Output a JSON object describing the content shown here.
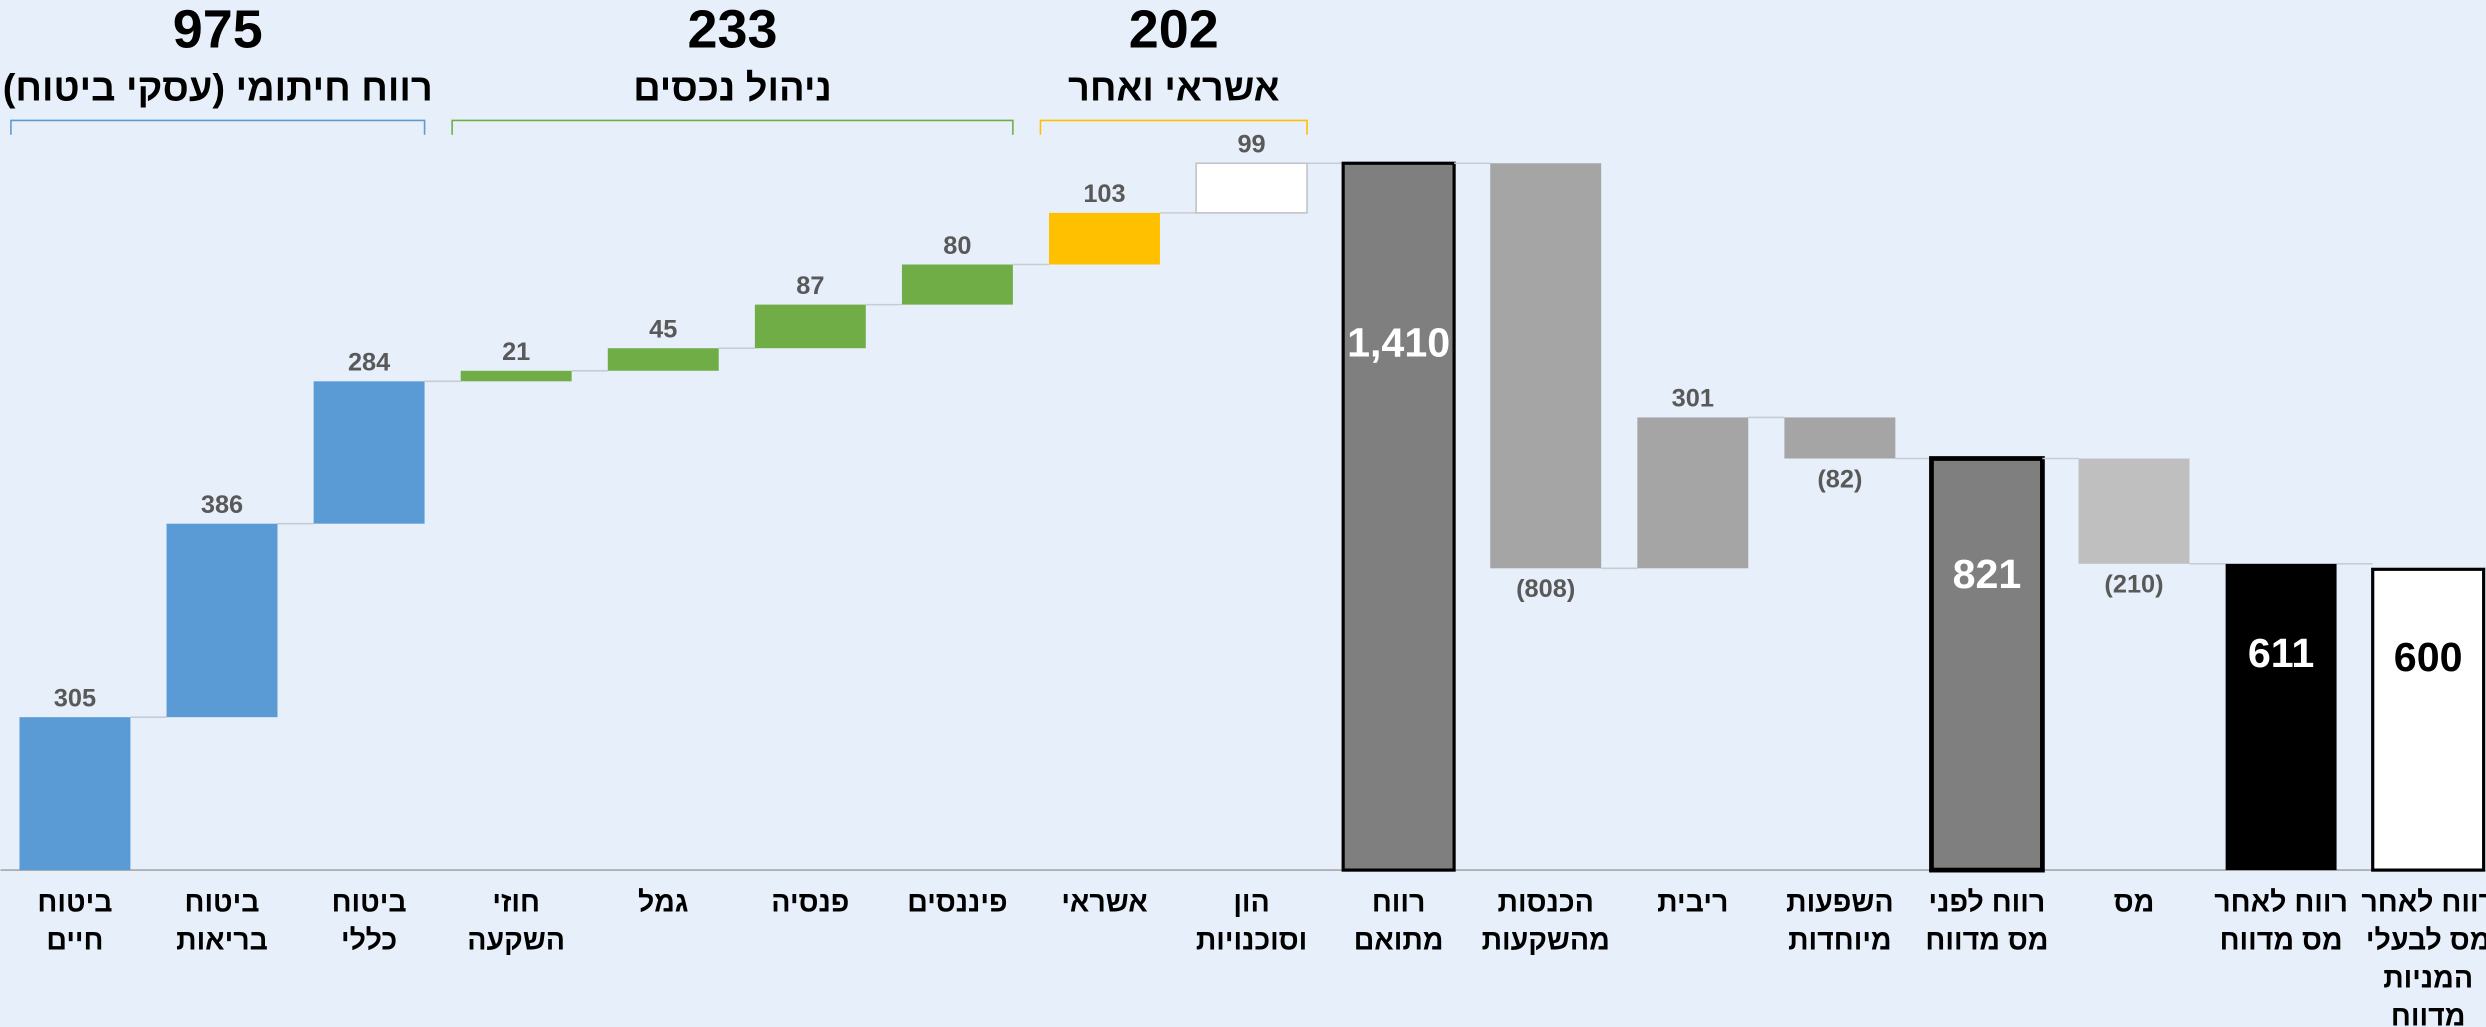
{
  "chart_data": {
    "type": "waterfall",
    "categories": [
      [
        "ביטוח",
        "חיים"
      ],
      [
        "ביטוח",
        "בריאות"
      ],
      [
        "ביטוח",
        "כללי"
      ],
      [
        "חוזי",
        "השקעה"
      ],
      [
        "גמל"
      ],
      [
        "פנסיה"
      ],
      [
        "פיננסים"
      ],
      [
        "אשראי"
      ],
      [
        "הון",
        "וסוכנויות"
      ],
      [
        "רווח",
        "מתואם"
      ],
      [
        "הכנסות",
        "מהשקעות"
      ],
      [
        "ריבית"
      ],
      [
        "השפעות",
        "מיוחדות"
      ],
      [
        "רווח לפני",
        "מס מדווח"
      ],
      [
        "מס"
      ],
      [
        "רווח לאחר",
        "מס מדווח"
      ],
      [
        "רווח לאחר",
        "מס לבעלי",
        "המניות",
        "מדווח"
      ]
    ],
    "values": [
      305,
      386,
      284,
      21,
      45,
      87,
      80,
      103,
      99,
      1410,
      -808,
      301,
      -82,
      821,
      -210,
      611,
      600
    ],
    "value_labels": [
      "305",
      "386",
      "284",
      "21",
      "45",
      "87",
      "80",
      "103",
      "99",
      "1,410",
      "(808)",
      "301",
      "(82)",
      "821",
      "(210)",
      "611",
      "600"
    ],
    "bar_kinds": [
      "delta",
      "delta",
      "delta",
      "delta",
      "delta",
      "delta",
      "delta",
      "delta",
      "delta",
      "total",
      "delta",
      "delta",
      "delta",
      "total",
      "delta",
      "total",
      "total"
    ],
    "colors": [
      "#5b9bd5",
      "#5b9bd5",
      "#5b9bd5",
      "#70ad47",
      "#70ad47",
      "#70ad47",
      "#70ad47",
      "#ffc000",
      "#ffffff",
      "#7f7f7f",
      "#a5a5a5",
      "#a5a5a5",
      "#a5a5a5",
      "#7f7f7f",
      "#bfbfbf",
      "#000000",
      "#ffffff"
    ],
    "ylim": [
      0,
      1410
    ],
    "groups": [
      {
        "value": 975,
        "label": "רווח חיתומי (עסקי ביטוח)",
        "start": 0,
        "end": 2,
        "color": "#5b9bd5"
      },
      {
        "value": 233,
        "label": "ניהול נכסים",
        "start": 3,
        "end": 6,
        "color": "#70ad47"
      },
      {
        "value": 202,
        "label": "אשראי ואחר",
        "start": 7,
        "end": 8,
        "color": "#ffc000"
      }
    ]
  }
}
